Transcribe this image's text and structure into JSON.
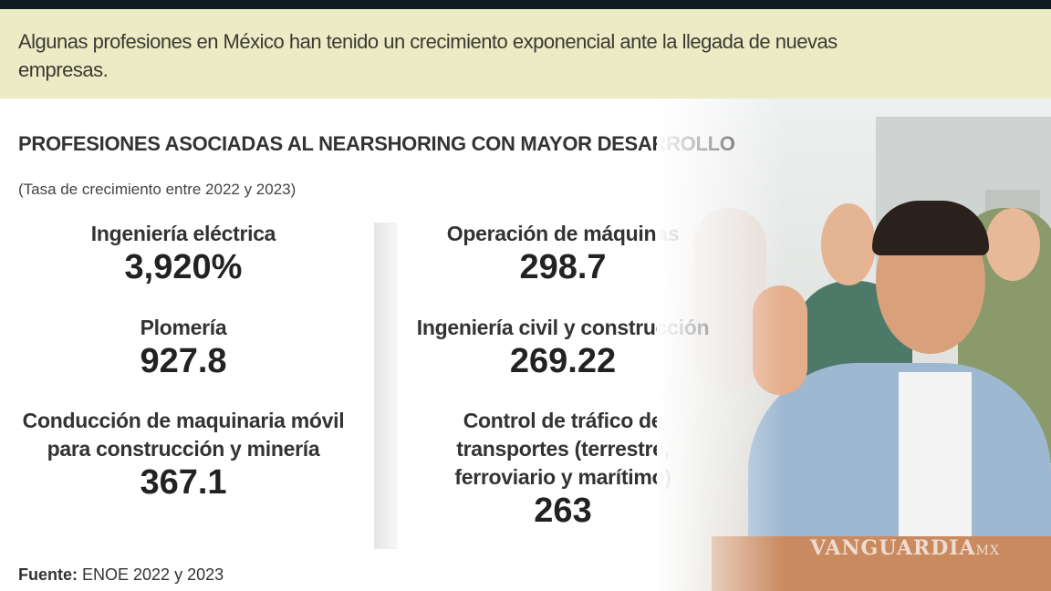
{
  "intro": "Algunas profesiones en México han tenido un crecimiento exponencial ante la llegada de nuevas empresas.",
  "title": "PROFESIONES ASOCIADAS AL NEARSHORING CON MAYOR DESARROLLO",
  "subtitle": "(Tasa de crecimiento entre 2022 y 2023)",
  "left_items": [
    {
      "label": "Ingeniería eléctrica",
      "value": "3,920%"
    },
    {
      "label": "Plomería",
      "value": "927.8"
    },
    {
      "label": "Conducción de maquinaria móvil para construcción y minería",
      "value": "367.1"
    }
  ],
  "right_items": [
    {
      "label": "Operación de máquinas",
      "value": "298.7"
    },
    {
      "label": "Ingeniería civil y construcción",
      "value": "269.22"
    },
    {
      "label": "Control de tráfico de transportes (terrestre, ferroviario y marítimo)",
      "value": "263"
    }
  ],
  "source": {
    "label": "Fuente:",
    "text": "ENOE 2022 y 2023"
  },
  "watermark": {
    "brand": "VANGUARDIA",
    "suffix": "MX"
  },
  "colors": {
    "intro_band": "#ecebc6",
    "top_bar": "#0e1b25"
  }
}
